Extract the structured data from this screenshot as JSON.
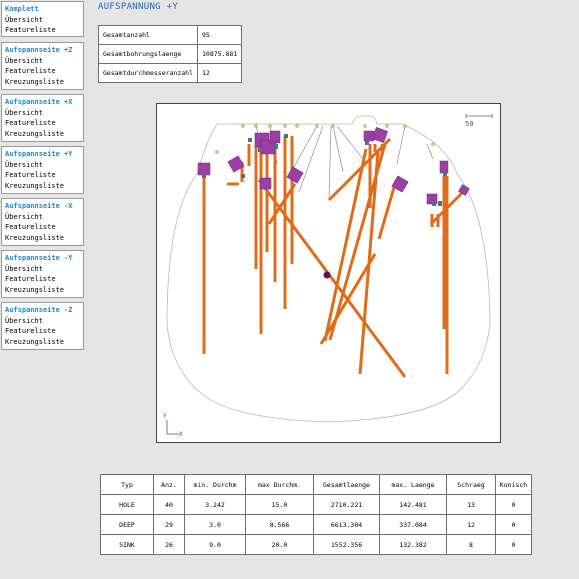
{
  "navigation": [
    {
      "title": "Komplett",
      "links": [
        "Übersicht",
        "Featureliste"
      ]
    },
    {
      "title": "Aufspannseite +Z",
      "links": [
        "Übersicht",
        "Featureliste",
        "Kreuzungsliste"
      ]
    },
    {
      "title": "Aufspannseite +X",
      "links": [
        "Übersicht",
        "Featureliste",
        "Kreuzungsliste"
      ]
    },
    {
      "title": "Aufspannseite +Y",
      "links": [
        "Übersicht",
        "Featureliste",
        "Kreuzungsliste"
      ]
    },
    {
      "title": "Aufspannseite -X",
      "links": [
        "Übersicht",
        "Featureliste",
        "Kreuzungsliste"
      ]
    },
    {
      "title": "Aufspannseite -Y",
      "links": [
        "Übersicht",
        "Featureliste",
        "Kreuzungsliste"
      ]
    },
    {
      "title": "Aufspannseite -Z",
      "links": [
        "Übersicht",
        "Featureliste",
        "Kreuzungsliste"
      ]
    }
  ],
  "page_title": "AUFSPANNUNG +Y",
  "summary": [
    {
      "label": "Gesamtanzahl",
      "value": "95"
    },
    {
      "label": "Gesamtbohrungslaenge",
      "value": "10875.881"
    },
    {
      "label": "Gesamtdurchmesseranzahl",
      "value": "12"
    }
  ],
  "view": {
    "scale_label": "50",
    "axis_y": "Y",
    "axis_x": "X",
    "colors": {
      "bore": "#e06c1a",
      "head": "#9a3fa5",
      "contour": "#b9b9b9",
      "marker": "#5a1250"
    }
  },
  "stats_table": {
    "headers": [
      "Typ",
      "Anz.",
      "min. Durchm",
      "max Durchm.",
      "Gesamtlaenge",
      "max. Laenge",
      "Schraeg",
      "Konisch"
    ],
    "rows": [
      [
        "HOLE",
        "40",
        "3.242",
        "15.0",
        "2710.221",
        "142.481",
        "13",
        "0"
      ],
      [
        "DEEP",
        "29",
        "3.0",
        "8.566",
        "6613.304",
        "337.084",
        "12",
        "0"
      ],
      [
        "SINK",
        "26",
        "9.0",
        "20.0",
        "1552.356",
        "132.382",
        "8",
        "0"
      ]
    ]
  }
}
